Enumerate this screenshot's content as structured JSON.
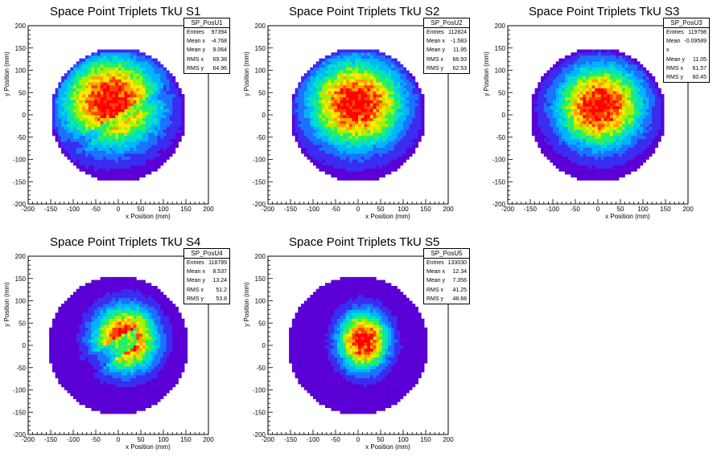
{
  "chart_data": [
    {
      "type": "heatmap",
      "title": "Space Point Triplets TkU S1",
      "xlabel": "x Position (mm)",
      "ylabel": "y Position (mm)",
      "xlim": [
        -200,
        200
      ],
      "ylim": [
        -200,
        200
      ],
      "x_ticks": [
        "-200",
        "-150",
        "-100",
        "-50",
        "0",
        "50",
        "100",
        "150",
        "200"
      ],
      "y_ticks": [
        "-200",
        "-150",
        "-100",
        "-50",
        "0",
        "50",
        "100",
        "150",
        "200"
      ],
      "stats": {
        "name": "SP_PosU1",
        "entries": "97394",
        "mean_x": "-4.768",
        "mean_y": "9.064",
        "rms_x": "69.38",
        "rms_y": "64.96"
      },
      "distribution": {
        "radius": 150,
        "center": [
          -8,
          10
        ],
        "sigma": [
          75,
          70
        ],
        "peak": [
          -15,
          30
        ],
        "dip": "diagonal"
      }
    },
    {
      "type": "heatmap",
      "title": "Space Point Triplets TkU S2",
      "xlabel": "x Position (mm)",
      "ylabel": "y Position (mm)",
      "xlim": [
        -200,
        200
      ],
      "ylim": [
        -200,
        200
      ],
      "x_ticks": [
        "-200",
        "-150",
        "-100",
        "-50",
        "0",
        "50",
        "100",
        "150",
        "200"
      ],
      "y_ticks": [
        "-200",
        "-150",
        "-100",
        "-50",
        "0",
        "50",
        "100",
        "150",
        "200"
      ],
      "stats": {
        "name": "SP_PosU2",
        "entries": "112824",
        "mean_x": "-1.583",
        "mean_y": "11.95",
        "rms_x": "66.93",
        "rms_y": "62.53"
      },
      "distribution": {
        "radius": 150,
        "center": [
          0,
          10
        ],
        "sigma": [
          72,
          68
        ],
        "peak": [
          -5,
          25
        ],
        "dip": "none"
      }
    },
    {
      "type": "heatmap",
      "title": "Space Point Triplets TkU S3",
      "xlabel": "x Position (mm)",
      "ylabel": "y Position (mm)",
      "xlim": [
        -200,
        200
      ],
      "ylim": [
        -200,
        200
      ],
      "x_ticks": [
        "-200",
        "-150",
        "-100",
        "-50",
        "0",
        "50",
        "100",
        "150",
        "200"
      ],
      "y_ticks": [
        "-200",
        "-150",
        "-100",
        "-50",
        "0",
        "50",
        "100",
        "150",
        "200"
      ],
      "stats": {
        "name": "SP_PosU3",
        "entries": "119798",
        "mean_x": "-0.09589",
        "mean_y": "11.05",
        "rms_x": "61.57",
        "rms_y": "60.45"
      },
      "distribution": {
        "radius": 150,
        "center": [
          0,
          10
        ],
        "sigma": [
          65,
          63
        ],
        "peak": [
          5,
          20
        ],
        "dip": "none"
      }
    },
    {
      "type": "heatmap",
      "title": "Space Point Triplets TkU S4",
      "xlabel": "x Position (mm)",
      "ylabel": "y Position (mm)",
      "xlim": [
        -200,
        200
      ],
      "ylim": [
        -200,
        200
      ],
      "x_ticks": [
        "-200",
        "-150",
        "-100",
        "-50",
        "0",
        "50",
        "100",
        "150",
        "200"
      ],
      "y_ticks": [
        "-200",
        "-150",
        "-100",
        "-50",
        "0",
        "50",
        "100",
        "150",
        "200"
      ],
      "stats": {
        "name": "SP_PosU4",
        "entries": "118789",
        "mean_x": "8.537",
        "mean_y": "13.24",
        "rms_x": "51.2",
        "rms_y": "53.8"
      },
      "distribution": {
        "radius": 155,
        "center": [
          10,
          15
        ],
        "sigma": [
          48,
          50
        ],
        "peak": [
          15,
          15
        ],
        "dip": "diagonal-lower"
      }
    },
    {
      "type": "heatmap",
      "title": "Space Point Triplets TkU S5",
      "xlabel": "x Position (mm)",
      "ylabel": "y Position (mm)",
      "xlim": [
        -200,
        200
      ],
      "ylim": [
        -200,
        200
      ],
      "x_ticks": [
        "-200",
        "-150",
        "-100",
        "-50",
        "0",
        "50",
        "100",
        "150",
        "200"
      ],
      "y_ticks": [
        "-200",
        "-150",
        "-100",
        "-50",
        "0",
        "50",
        "100",
        "150",
        "200"
      ],
      "stats": {
        "name": "SP_PosU5",
        "entries": "133030",
        "mean_x": "12.34",
        "mean_y": "7.356",
        "rms_x": "41.25",
        "rms_y": "48.68"
      },
      "distribution": {
        "radius": 155,
        "center": [
          12,
          5
        ],
        "sigma": [
          38,
          45
        ],
        "peak": [
          12,
          10
        ],
        "dip": "none"
      }
    }
  ],
  "stats_labels": {
    "entries": "Entries",
    "mean_x": "Mean x",
    "mean_y": "Mean y",
    "rms_x": "RMS x",
    "rms_y": "RMS y"
  },
  "palette": [
    "#5a00d6",
    "#3a2cf0",
    "#1a72ff",
    "#00b4ff",
    "#00e0c8",
    "#28f060",
    "#a8f000",
    "#ffe800",
    "#ffa000",
    "#ff4000",
    "#ff0000"
  ]
}
